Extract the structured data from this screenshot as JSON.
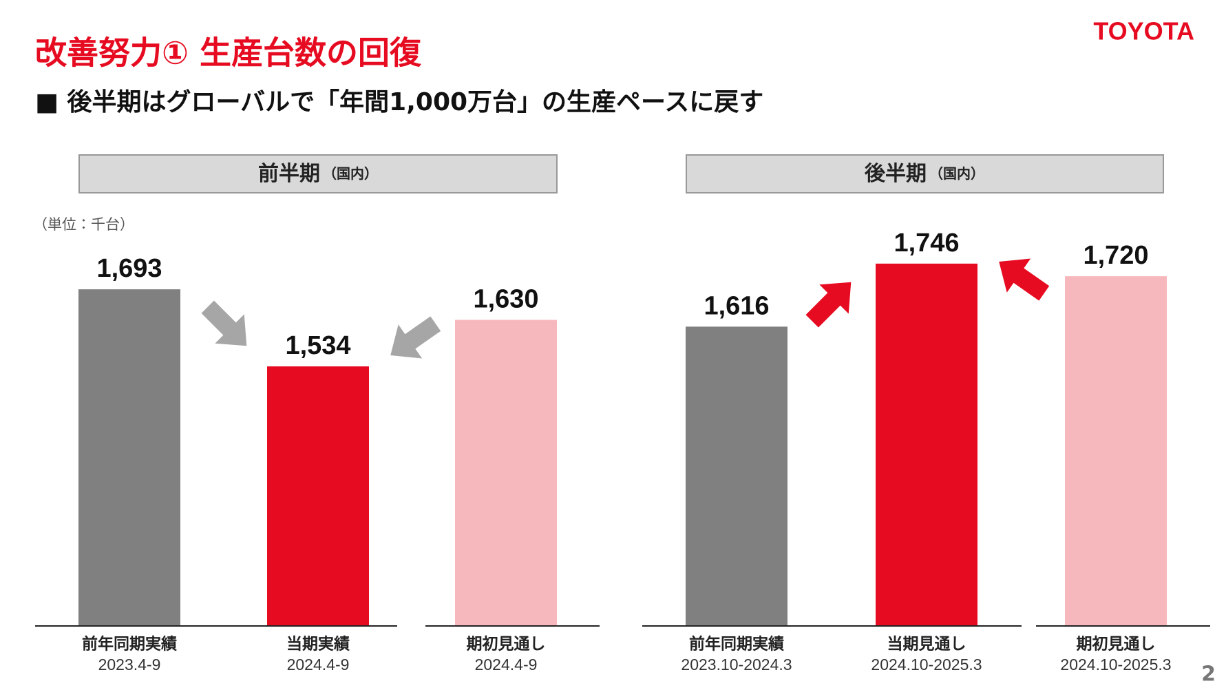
{
  "header": {
    "title": "改善努力① 生産台数の回復",
    "logo": "TOYOTA",
    "subtitle": "■ 後半期はグローバルで「年間1,000万台」の生産ペースに戻す",
    "unit": "（単位：千台）",
    "page_number": "2"
  },
  "chart_data": [
    {
      "type": "bar",
      "title": "前半期",
      "subtitle": "（国内）",
      "categories": [
        "前年同期実績",
        "当期実績",
        "期初見通し"
      ],
      "periods": [
        "2023.4-9",
        "2024.4-9",
        "2024.4-9"
      ],
      "values": [
        1693,
        1534,
        1630
      ],
      "value_labels": [
        "1,693",
        "1,534",
        "1,630"
      ],
      "colors": [
        "#808080",
        "#e60b20",
        "#f7b8bd"
      ],
      "ylim": [
        1000,
        1750
      ]
    },
    {
      "type": "bar",
      "title": "後半期",
      "subtitle": "（国内）",
      "categories": [
        "前年同期実績",
        "当期見通し",
        "期初見通し"
      ],
      "periods": [
        "2023.10-2024.3",
        "2024.10-2025.3",
        "2024.10-2025.3"
      ],
      "values": [
        1616,
        1746,
        1720
      ],
      "value_labels": [
        "1,616",
        "1,746",
        "1,720"
      ],
      "colors": [
        "#808080",
        "#e60b20",
        "#f7b8bd"
      ],
      "ylim": [
        1000,
        1750
      ]
    }
  ]
}
